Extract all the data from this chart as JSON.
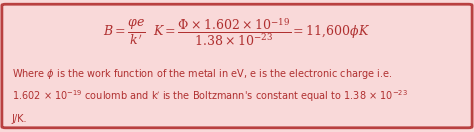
{
  "bg_color": "#f9d9d9",
  "border_color": "#b94040",
  "border_linewidth": 2.0,
  "formula_color": "#b03030",
  "text_color": "#b03030",
  "fig_width": 4.74,
  "fig_height": 1.32,
  "dpi": 100
}
